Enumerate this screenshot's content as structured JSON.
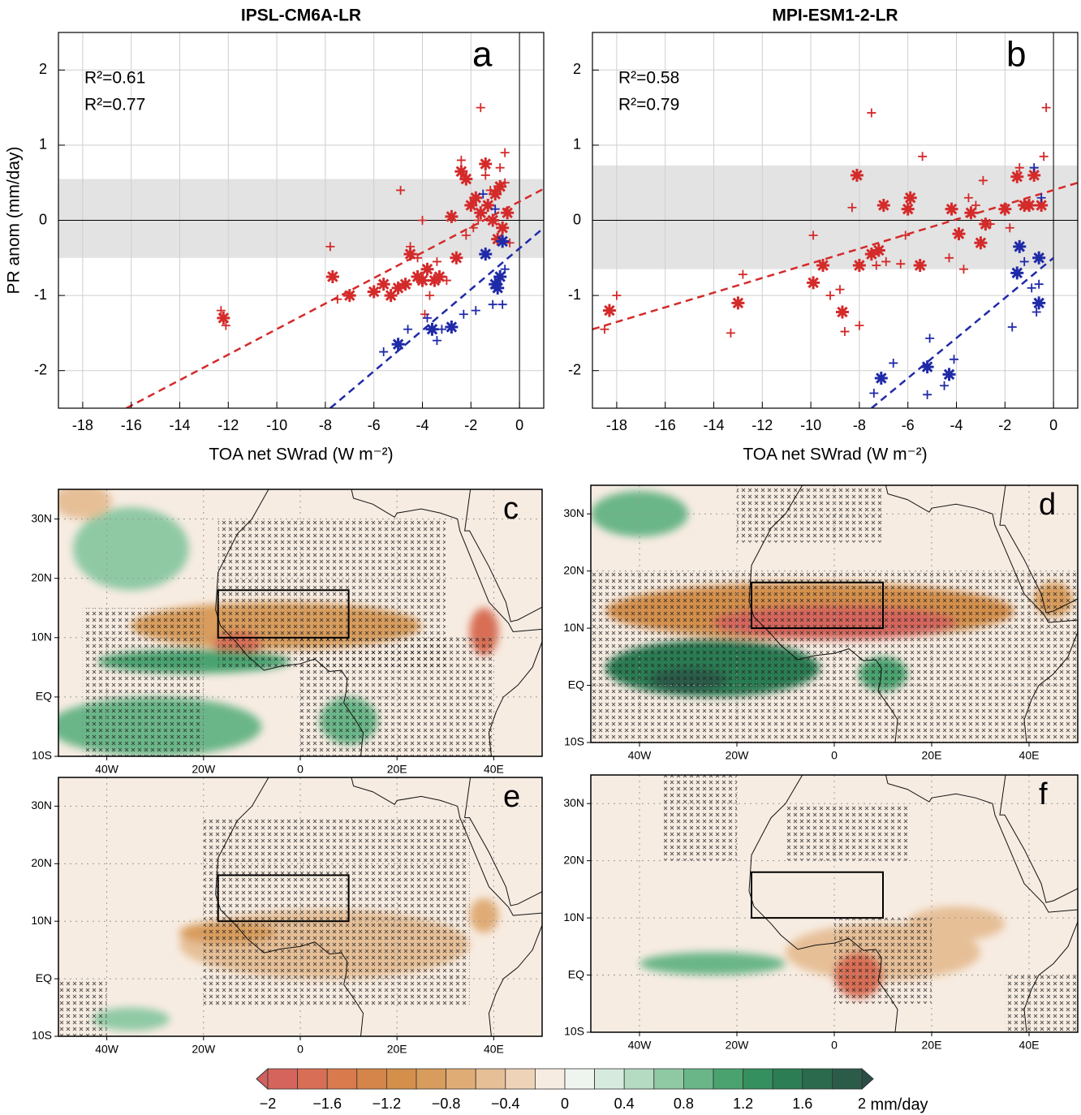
{
  "chart_data": [
    {
      "type": "scatter",
      "title": "IPSL-CM6A-LR",
      "xlabel": "TOA net SWrad (W m⁻²)",
      "ylabel": "PR anom (mm/day)",
      "label": "a",
      "xlim": [
        -19,
        1
      ],
      "xticks": [
        -18,
        -16,
        -14,
        -12,
        -10,
        -8,
        -6,
        -4,
        -2,
        0
      ],
      "ylim": [
        -2.5,
        2.5
      ],
      "yticks": [
        -2,
        -1,
        0,
        1,
        2
      ],
      "grid": true,
      "zero_lines": true,
      "band": [
        -0.5,
        0.55
      ],
      "annotations": [
        {
          "text": "R²=0.61",
          "color": "#d42a2a"
        },
        {
          "text": "R²=0.77",
          "color": "#1f2aa8"
        }
      ],
      "series": [
        {
          "color": "#d42a2a",
          "marker": "star",
          "x": [
            -12.2,
            -7.7,
            -7,
            -6,
            -5.6,
            -5.3,
            -5,
            -4.7,
            -4.5,
            -4.2,
            -4,
            -3.8,
            -3.5,
            -3.3,
            -2.8,
            -2.6,
            -2.4,
            -2.2,
            -2,
            -1.8,
            -1.6,
            -1.4,
            -1.3,
            -1.1,
            -1,
            -0.8,
            -0.7,
            -0.5,
            -0.9
          ],
          "values": [
            -1.3,
            -0.75,
            -1.0,
            -0.95,
            -0.85,
            -1.0,
            -0.9,
            -0.85,
            -0.45,
            -0.75,
            -0.8,
            -0.65,
            -0.8,
            -0.75,
            0.05,
            -0.5,
            0.65,
            0.55,
            0.2,
            0.3,
            0.1,
            0.75,
            0.2,
            0.0,
            0.35,
            0.45,
            -0.1,
            0.1,
            -0.25
          ]
        },
        {
          "color": "#d42a2a",
          "marker": "cross",
          "x": [
            -12.3,
            -12.1,
            -7.8,
            -7.5,
            -4.9,
            -4.5,
            -4.2,
            -4,
            -3.9,
            -3.7,
            -3.4,
            -3,
            -2.4,
            -2.2,
            -1.9,
            -1.6,
            -1.4,
            -1.2,
            -0.8,
            -0.6,
            -0.6,
            -0.4,
            -1.7
          ],
          "values": [
            -1.2,
            -1.4,
            -0.35,
            -1.05,
            0.4,
            -0.35,
            -0.5,
            0.0,
            -1.25,
            -1.0,
            -0.55,
            -0.8,
            0.8,
            -0.2,
            -0.1,
            1.5,
            0.6,
            0.4,
            0.7,
            0.9,
            0.5,
            -0.3,
            0.0
          ]
        },
        {
          "color": "#1f2aa8",
          "marker": "star",
          "x": [
            -5,
            -3.6,
            -2.8,
            -1.4,
            -1,
            -0.8,
            -0.7,
            -0.9
          ],
          "values": [
            -1.65,
            -1.45,
            -1.42,
            -0.45,
            -0.85,
            -0.75,
            -0.28,
            -0.9
          ]
        },
        {
          "color": "#1f2aa8",
          "marker": "cross",
          "x": [
            -5.6,
            -4.6,
            -3.8,
            -3.4,
            -3.2,
            -2.3,
            -1.8,
            -1.5,
            -1.1,
            -0.7,
            -0.6,
            -1
          ],
          "values": [
            -1.75,
            -1.45,
            -1.3,
            -1.6,
            -1.45,
            -1.25,
            -1.2,
            0.35,
            -1.12,
            -1.12,
            -0.65,
            0.15
          ]
        }
      ],
      "fits": [
        {
          "color": "#d42a2a",
          "x": [
            -16.2,
            1
          ],
          "values": [
            -2.5,
            0.42
          ]
        },
        {
          "color": "#1f2aa8",
          "x": [
            -7.8,
            1
          ],
          "values": [
            -2.5,
            -0.1
          ]
        }
      ]
    },
    {
      "type": "scatter",
      "title": "MPI-ESM1-2-LR",
      "xlabel": "TOA net SWrad (W m⁻²)",
      "label": "b",
      "xlim": [
        -19,
        1
      ],
      "xticks": [
        -18,
        -16,
        -14,
        -12,
        -10,
        -8,
        -6,
        -4,
        -2,
        0
      ],
      "ylim": [
        -2.5,
        2.5
      ],
      "yticks": [
        -2,
        -1,
        0,
        1,
        2
      ],
      "grid": true,
      "zero_lines": true,
      "band": [
        -0.65,
        0.73
      ],
      "annotations": [
        {
          "text": "R²=0.58",
          "color": "#d42a2a"
        },
        {
          "text": "R²=0.79",
          "color": "#1f2aa8"
        }
      ],
      "series": [
        {
          "color": "#d42a2a",
          "marker": "star",
          "x": [
            -18.3,
            -13,
            -9.9,
            -9.5,
            -8.7,
            -8,
            -8.1,
            -7.5,
            -7.2,
            -7,
            -6,
            -5.9,
            -5.5,
            -4.2,
            -3.9,
            -3.4,
            -3,
            -2.8,
            -2,
            -1.5,
            -1.2,
            -0.8,
            -0.5,
            -1
          ],
          "values": [
            -1.2,
            -1.1,
            -0.83,
            -0.6,
            -1.22,
            -0.6,
            0.6,
            -0.45,
            -0.4,
            0.2,
            0.15,
            0.3,
            -0.6,
            0.15,
            -0.18,
            0.1,
            -0.3,
            -0.05,
            0.15,
            0.58,
            0.2,
            0.6,
            0.2,
            0.2
          ]
        },
        {
          "color": "#d42a2a",
          "marker": "cross",
          "x": [
            -18.5,
            -18,
            -13.3,
            -12.8,
            -9.9,
            -9.2,
            -8.8,
            -8.6,
            -8,
            -8.3,
            -7.5,
            -7.3,
            -6.9,
            -6.3,
            -6.1,
            -5.4,
            -4.3,
            -3.7,
            -3.5,
            -3.2,
            -2.9,
            -2.6,
            -1.8,
            -1.4,
            -0.3,
            -0.4
          ],
          "values": [
            -1.45,
            -1.0,
            -1.5,
            -0.72,
            -0.2,
            -1.0,
            -0.92,
            -1.48,
            -1.4,
            0.17,
            1.43,
            -0.6,
            -0.55,
            -0.58,
            -0.2,
            0.85,
            -0.5,
            -0.65,
            0.3,
            0.2,
            0.53,
            -0.05,
            -0.1,
            0.7,
            1.5,
            0.85
          ]
        },
        {
          "color": "#1f2aa8",
          "marker": "star",
          "x": [
            -7.1,
            -5.2,
            -4.3,
            -1.5,
            -1.4,
            -0.6,
            -0.6
          ],
          "values": [
            -2.1,
            -1.95,
            -2.05,
            -0.7,
            -0.35,
            -0.5,
            -1.1
          ]
        },
        {
          "color": "#1f2aa8",
          "marker": "cross",
          "x": [
            -7.4,
            -6.6,
            -5.2,
            -5.1,
            -4.5,
            -4.1,
            -1.7,
            -1.2,
            -0.9,
            -0.7,
            -0.8,
            -0.6,
            -0.5
          ],
          "values": [
            -2.3,
            -1.9,
            -2.32,
            -1.57,
            -2.2,
            -1.85,
            -1.42,
            -0.55,
            -0.9,
            -1.22,
            0.7,
            -0.85,
            0.3
          ]
        }
      ],
      "fits": [
        {
          "color": "#d42a2a",
          "x": [
            -19,
            1
          ],
          "values": [
            -1.45,
            0.5
          ]
        },
        {
          "color": "#1f2aa8",
          "x": [
            -7.5,
            0
          ],
          "values": [
            -2.5,
            -0.5
          ]
        }
      ]
    },
    {
      "type": "map",
      "label": "c",
      "xlim": [
        -50,
        50
      ],
      "ylim": [
        -10,
        35
      ],
      "grid": true,
      "xticks": [
        {
          "value": -40,
          "label": "40W"
        },
        {
          "value": -20,
          "label": "20W"
        },
        0,
        {
          "value": 20,
          "label": "20E"
        },
        {
          "value": 40,
          "label": "40E"
        }
      ],
      "yticks": [
        {
          "value": -10,
          "label": "10S"
        },
        {
          "value": 0,
          "label": "EQ"
        },
        {
          "value": 10,
          "label": "10N"
        },
        {
          "value": 20,
          "label": "20N"
        },
        {
          "value": 30,
          "label": "30N"
        }
      ],
      "box": {
        "lon": [
          -17,
          10
        ],
        "lat": [
          10,
          18
        ]
      },
      "background": -0.1,
      "regions": [
        {
          "lon": -35,
          "lat": 25,
          "rx": 12,
          "ry": 7,
          "value": 0.6
        },
        {
          "lon": -30,
          "lat": -5,
          "rx": 22,
          "ry": 5,
          "value": 0.8
        },
        {
          "lon": -45,
          "lat": 33,
          "rx": 6,
          "ry": 3,
          "value": -0.6
        },
        {
          "lon": -5,
          "lat": 12,
          "rx": 30,
          "ry": 4,
          "value": -1.0
        },
        {
          "lon": -13,
          "lat": 9,
          "rx": 5,
          "ry": 2,
          "value": -1.6
        },
        {
          "lon": 38,
          "lat": 11,
          "rx": 3,
          "ry": 4,
          "value": -1.6
        },
        {
          "lon": -22,
          "lat": 6,
          "rx": 20,
          "ry": 2,
          "value": 1.0
        },
        {
          "lon": 10,
          "lat": -4,
          "rx": 6,
          "ry": 4,
          "value": 0.8
        }
      ],
      "stipple": [
        {
          "lon": [
            -17,
            30
          ],
          "lat": [
            5,
            30
          ]
        },
        {
          "lon": [
            -45,
            -20
          ],
          "lat": [
            -10,
            15
          ]
        },
        {
          "lon": [
            0,
            40
          ],
          "lat": [
            -10,
            10
          ]
        }
      ]
    },
    {
      "type": "map",
      "label": "d",
      "xlim": [
        -50,
        50
      ],
      "ylim": [
        -10,
        35
      ],
      "grid": true,
      "xticks": [
        {
          "value": -40,
          "label": "40W"
        },
        {
          "value": -20,
          "label": "20W"
        },
        0,
        {
          "value": 20,
          "label": "20E"
        },
        {
          "value": 40,
          "label": "40E"
        }
      ],
      "yticks": [
        {
          "value": -10,
          "label": "10S"
        },
        {
          "value": 0,
          "label": "EQ"
        },
        {
          "value": 10,
          "label": "10N"
        },
        {
          "value": 20,
          "label": "20N"
        },
        {
          "value": 30,
          "label": "30N"
        }
      ],
      "box": {
        "lon": [
          -17,
          10
        ],
        "lat": [
          10,
          18
        ]
      },
      "background": -0.1,
      "regions": [
        {
          "lon": -5,
          "lat": 13,
          "rx": 42,
          "ry": 5,
          "value": -1.2
        },
        {
          "lon": 0,
          "lat": 11,
          "rx": 25,
          "ry": 3,
          "value": -1.8
        },
        {
          "lon": -25,
          "lat": 3,
          "rx": 22,
          "ry": 5,
          "value": 1.4
        },
        {
          "lon": -30,
          "lat": 1,
          "rx": 8,
          "ry": 2,
          "value": 2.0
        },
        {
          "lon": 10,
          "lat": 2,
          "rx": 5,
          "ry": 3,
          "value": 1.0
        },
        {
          "lon": -40,
          "lat": 30,
          "rx": 10,
          "ry": 4,
          "value": 0.8
        },
        {
          "lon": 45,
          "lat": 15,
          "rx": 4,
          "ry": 3,
          "value": -1.0
        }
      ],
      "stipple": [
        {
          "lon": [
            -50,
            50
          ],
          "lat": [
            -10,
            20
          ]
        },
        {
          "lon": [
            -20,
            10
          ],
          "lat": [
            25,
            35
          ]
        }
      ]
    },
    {
      "type": "map",
      "label": "e",
      "xlim": [
        -50,
        50
      ],
      "ylim": [
        -10,
        35
      ],
      "grid": true,
      "xticks": [
        {
          "value": -40,
          "label": "40W"
        },
        {
          "value": -20,
          "label": "20W"
        },
        0,
        {
          "value": 20,
          "label": "20E"
        },
        {
          "value": 40,
          "label": "40E"
        }
      ],
      "yticks": [
        {
          "value": -10,
          "label": "10S"
        },
        {
          "value": 0,
          "label": "EQ"
        },
        {
          "value": 10,
          "label": "10N"
        },
        {
          "value": 20,
          "label": "20N"
        },
        {
          "value": 30,
          "label": "30N"
        }
      ],
      "box": {
        "lon": [
          -17,
          10
        ],
        "lat": [
          10,
          18
        ]
      },
      "background": -0.1,
      "regions": [
        {
          "lon": 5,
          "lat": 6,
          "rx": 30,
          "ry": 6,
          "value": -0.6
        },
        {
          "lon": -15,
          "lat": 8,
          "rx": 10,
          "ry": 2,
          "value": -1.0
        },
        {
          "lon": 38,
          "lat": 11,
          "rx": 3,
          "ry": 3,
          "value": -0.8
        },
        {
          "lon": -35,
          "lat": -7,
          "rx": 8,
          "ry": 2,
          "value": 0.6
        }
      ],
      "stipple": [
        {
          "lon": [
            -20,
            35
          ],
          "lat": [
            -5,
            28
          ]
        },
        {
          "lon": [
            -50,
            -40
          ],
          "lat": [
            -10,
            0
          ]
        }
      ]
    },
    {
      "type": "map",
      "label": "f",
      "xlim": [
        -50,
        50
      ],
      "ylim": [
        -10,
        35
      ],
      "grid": true,
      "xticks": [
        {
          "value": -40,
          "label": "40W"
        },
        {
          "value": -20,
          "label": "20W"
        },
        0,
        {
          "value": 20,
          "label": "20E"
        },
        {
          "value": 40,
          "label": "40E"
        }
      ],
      "yticks": [
        {
          "value": -10,
          "label": "10S"
        },
        {
          "value": 0,
          "label": "EQ"
        },
        {
          "value": 10,
          "label": "10N"
        },
        {
          "value": 20,
          "label": "20N"
        },
        {
          "value": 30,
          "label": "30N"
        }
      ],
      "box": {
        "lon": [
          -17,
          10
        ],
        "lat": [
          10,
          18
        ]
      },
      "background": -0.1,
      "regions": [
        {
          "lon": 10,
          "lat": 4,
          "rx": 20,
          "ry": 5,
          "value": -0.6
        },
        {
          "lon": 5,
          "lat": 0,
          "rx": 5,
          "ry": 4,
          "value": -1.6
        },
        {
          "lon": -25,
          "lat": 2,
          "rx": 15,
          "ry": 2,
          "value": 0.8
        },
        {
          "lon": 25,
          "lat": 9,
          "rx": 10,
          "ry": 3,
          "value": -0.6
        }
      ],
      "stipple": [
        {
          "lon": [
            -35,
            -20
          ],
          "lat": [
            20,
            35
          ]
        },
        {
          "lon": [
            35,
            50
          ],
          "lat": [
            -10,
            0
          ]
        },
        {
          "lon": [
            -10,
            15
          ],
          "lat": [
            20,
            30
          ]
        },
        {
          "lon": [
            0,
            20
          ],
          "lat": [
            -5,
            10
          ]
        }
      ]
    },
    {
      "type": "colorbar",
      "unit": "mm/day",
      "xlim": [
        -2,
        2
      ],
      "colors": [
        "#d5655c",
        "#d86e55",
        "#d97a4d",
        "#d6854a",
        "#d48f4b",
        "#d89c5c",
        "#e0ac76",
        "#e6bf97",
        "#eed3b8",
        "#f7ece2",
        "#eef5ef",
        "#d6ebdd",
        "#b5dbc2",
        "#8fc9a4",
        "#6ab688",
        "#4aa36f",
        "#34905e",
        "#2c7d53",
        "#2b6a4c",
        "#2b5b49"
      ],
      "extend_colors": [
        "#d1605e",
        "#2a4d47"
      ],
      "xticks": [
        {
          "value": -2,
          "label": "−2"
        },
        {
          "value": -1.6,
          "label": "−1.6"
        },
        {
          "value": -1.2,
          "label": "−1.2"
        },
        {
          "value": -0.8,
          "label": "−0.8"
        },
        {
          "value": -0.4,
          "label": "−0.4"
        },
        0,
        0.4,
        0.8,
        1.2,
        1.6,
        2
      ]
    }
  ]
}
